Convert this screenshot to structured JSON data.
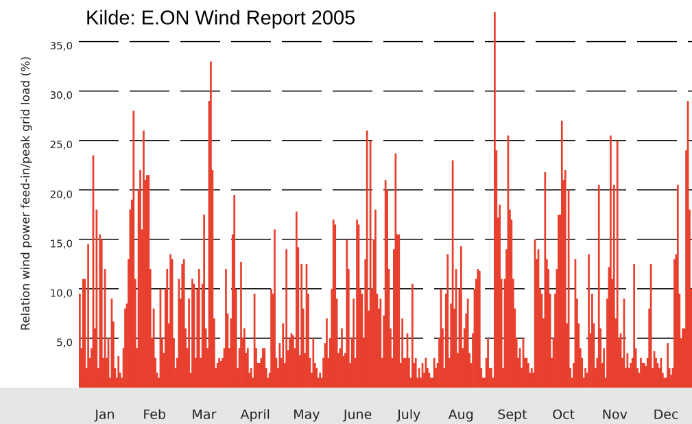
{
  "chart_data": {
    "type": "bar",
    "title": "Kilde: E.ON Wind Report 2005",
    "y_label": "Relation wind power feed-in/peak grid load (%)",
    "color": "#e8402f",
    "grid": true,
    "xlim": [
      0.5,
      365.5
    ],
    "ylim": [
      0,
      39
    ],
    "yticks": [
      {
        "value": 5,
        "label": "5,0"
      },
      {
        "value": 10,
        "label": "10,0"
      },
      {
        "value": 15,
        "label": "15,0"
      },
      {
        "value": 20,
        "label": "20,0"
      },
      {
        "value": 25,
        "label": "25,0"
      },
      {
        "value": 30,
        "label": "30,0"
      },
      {
        "value": 35,
        "label": "35,0"
      }
    ],
    "xticks": [
      {
        "value": 16,
        "label": "Jan"
      },
      {
        "value": 45.5,
        "label": "Feb"
      },
      {
        "value": 75,
        "label": "Mar"
      },
      {
        "value": 105.5,
        "label": "April"
      },
      {
        "value": 136,
        "label": "May"
      },
      {
        "value": 166.5,
        "label": "June"
      },
      {
        "value": 197,
        "label": "July"
      },
      {
        "value": 228,
        "label": "Aug"
      },
      {
        "value": 258.5,
        "label": "Sept"
      },
      {
        "value": 289,
        "label": "Oct"
      },
      {
        "value": 319.5,
        "label": "Nov"
      },
      {
        "value": 350,
        "label": "Dec"
      }
    ],
    "values": [
      9.5,
      4,
      11,
      11,
      2,
      14.5,
      3,
      4,
      23.5,
      6,
      18,
      2,
      15.5,
      15,
      3,
      12,
      3,
      5,
      1,
      9,
      6.7,
      2,
      1,
      3.2,
      1.5,
      1,
      4,
      8,
      8.5,
      13,
      18,
      19,
      28,
      11,
      4,
      20,
      22,
      16,
      26,
      21,
      21.5,
      21.5,
      12,
      5,
      8,
      3,
      1.5,
      1,
      10,
      5,
      3.5,
      10,
      12,
      6.5,
      13.5,
      13,
      5,
      2,
      3,
      11,
      9,
      12.5,
      13,
      6,
      4,
      9,
      1.5,
      11,
      10.5,
      3,
      10,
      12,
      3,
      10.5,
      17.5,
      6,
      4,
      29,
      33,
      22,
      7,
      2,
      2.5,
      3,
      2.7,
      3,
      4,
      12,
      7.5,
      4,
      7,
      15.5,
      19.5,
      10,
      2,
      4,
      12.7,
      5,
      6,
      3.5,
      4,
      1.5,
      2,
      1,
      9.5,
      4,
      2.5,
      2.5,
      3,
      4,
      4,
      2,
      1,
      1.5,
      10,
      9.5,
      16,
      3,
      2,
      4.5,
      3,
      6.5,
      2.5,
      14,
      3.8,
      5,
      5.5,
      5.3,
      4,
      17.8,
      14.2,
      3.3,
      12.5,
      8,
      3.5,
      12.5,
      9.5,
      3,
      1.5,
      5,
      2.5,
      2,
      1,
      1.5,
      1,
      3,
      4.5,
      7,
      3,
      5,
      10,
      17,
      16.5,
      9,
      3.5,
      4,
      6,
      3.2,
      3.5,
      15,
      12,
      2.5,
      5,
      9,
      3,
      17,
      16.5,
      10,
      9.5,
      5,
      13,
      26,
      7.8,
      25,
      10,
      15,
      18,
      9.5,
      8,
      9,
      3,
      7.3,
      21,
      20,
      12,
      6,
      3,
      14,
      23.7,
      15.5,
      15.5,
      2.5,
      7,
      3,
      3,
      5.5,
      3,
      1,
      10.5,
      2.5,
      3,
      1,
      2,
      1,
      2.5,
      1.5,
      3,
      2,
      1.5,
      1,
      1,
      3,
      2,
      2.5,
      5,
      10,
      6,
      2,
      9.5,
      13.5,
      3,
      8.5,
      23,
      8,
      12,
      3.5,
      10,
      14.3,
      4,
      6,
      7.5,
      9,
      3.5,
      2.5,
      5.5,
      10,
      11,
      12,
      11.8,
      2,
      1,
      1,
      3,
      5,
      2,
      2,
      1,
      38,
      24,
      17.2,
      18.5,
      11,
      2,
      11,
      14,
      25.5,
      18,
      17,
      11,
      8,
      5,
      3,
      4,
      2,
      5,
      3,
      3,
      2.5,
      1.5,
      2,
      1.5,
      15,
      13,
      14,
      10,
      9.5,
      7,
      21.8,
      13,
      12,
      9.5,
      3,
      5,
      9.5,
      12,
      17.5,
      17.5,
      27,
      21,
      22,
      6.5,
      20,
      2,
      1,
      2.5,
      13,
      9,
      6.5,
      4,
      3,
      1,
      2,
      1.5,
      13.5,
      5.5,
      9.5,
      6.5,
      2,
      3,
      20.5,
      6,
      2.5,
      4,
      1,
      9,
      12.2,
      25.5,
      11,
      20.5,
      7,
      25,
      5,
      5.5,
      3,
      9,
      2,
      3.5,
      2,
      2.5,
      3,
      12.5,
      4,
      2,
      1.5,
      3,
      2.5,
      2.5,
      2.2,
      3,
      8,
      12.5,
      2,
      3.7,
      3,
      2.5,
      2,
      3,
      1.5,
      1,
      1,
      4.5,
      2,
      1.3,
      2,
      13,
      13.5,
      20.5,
      9.5,
      5,
      6,
      6,
      24,
      29,
      18,
      10
    ]
  }
}
